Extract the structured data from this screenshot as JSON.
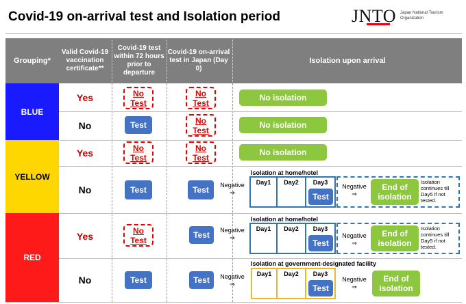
{
  "title": "Covid-19 on-arrival test and Isolation period",
  "logo": {
    "text": "JNTO",
    "sub": "Japan National Tourism Organization"
  },
  "header": {
    "grouping": "Grouping*",
    "col1": "Valid Covid-19 vaccination certificate**",
    "col2": "Covid-19 test within 72 hours prior to departure",
    "col3": "Covid-19 on-arrival test in Japan (Day 0)",
    "col4": "Isolation upon arrival"
  },
  "groups": {
    "blue": "BLUE",
    "yellow": "YELLOW",
    "red": "RED"
  },
  "labels": {
    "yes": "Yes",
    "no": "No",
    "no_test_1": "No",
    "no_test_2": "Test",
    "test": "Test",
    "no_isolation": "No isolation",
    "negative": "Negative",
    "arrow": "⇒",
    "home_hotel": "Isolation at home/hotel",
    "government": "Isolation at government-designated facility",
    "day1": "Day1",
    "day2": "Day2",
    "day3": "Day3",
    "end_of_isolation": "End of isolation",
    "continues_note": "Isolation continues till Day5 if not tested."
  },
  "colors": {
    "blue": "#1a1aff",
    "yellow": "#ffd700",
    "red": "#ff1a1a",
    "header": "#7f7f7f",
    "test": "#4472c4",
    "green": "#8dc63f",
    "no_test": "#e00000"
  }
}
